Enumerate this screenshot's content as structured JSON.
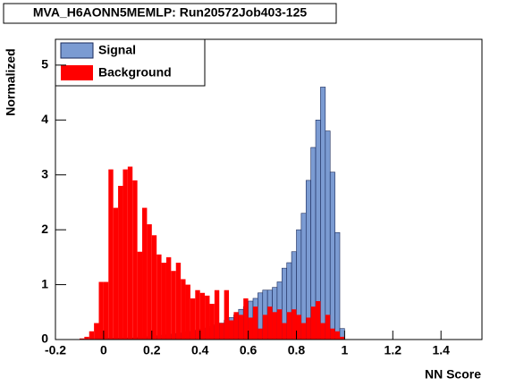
{
  "chart_data": {
    "type": "histogram",
    "title": "MVA_H6AONN5MEMLP: Run20572Job403-125",
    "x_label": "NN Score",
    "y_label": "Normalized",
    "bins": [
      -0.1,
      -0.08,
      -0.06,
      -0.04,
      -0.02,
      0,
      0.02,
      0.04,
      0.06,
      0.08,
      0.1,
      0.12,
      0.14,
      0.16,
      0.18,
      0.2,
      0.22,
      0.24,
      0.26,
      0.28,
      0.3,
      0.32,
      0.34,
      0.36,
      0.38,
      0.4,
      0.42,
      0.44,
      0.46,
      0.48,
      0.5,
      0.52,
      0.54,
      0.56,
      0.58,
      0.6,
      0.62,
      0.64,
      0.66,
      0.68,
      0.7,
      0.72,
      0.74,
      0.76,
      0.78,
      0.8,
      0.82,
      0.84,
      0.86,
      0.88,
      0.9,
      0.92,
      0.94,
      0.96,
      0.98,
      1
    ],
    "series": [
      {
        "name": "Signal",
        "color": "#7b9bd2",
        "values": [
          0,
          0,
          0,
          0,
          0.01,
          0.01,
          0.02,
          0.02,
          0.02,
          0.03,
          0.03,
          0.03,
          0.04,
          0.05,
          0.05,
          0.06,
          0.07,
          0.08,
          0.09,
          0.1,
          0.11,
          0.12,
          0.14,
          0.15,
          0.17,
          0.19,
          0.21,
          0.24,
          0.27,
          0.3,
          0.35,
          0.4,
          0.45,
          0.55,
          0.6,
          0.7,
          0.75,
          0.85,
          0.9,
          0.9,
          0.95,
          1.05,
          1.3,
          1.4,
          1.6,
          2.0,
          2.3,
          2.9,
          3.5,
          4.0,
          4.6,
          3.8,
          3.05,
          1.95,
          0.2
        ]
      },
      {
        "name": "Background",
        "color": "#ff0000",
        "values": [
          0.02,
          0.05,
          0.15,
          0.3,
          1.05,
          1.05,
          3.1,
          2.4,
          2.8,
          3.1,
          3.15,
          2.9,
          1.6,
          2.4,
          2.1,
          1.9,
          1.55,
          1.4,
          1.5,
          1.25,
          1.4,
          1.1,
          1.0,
          0.75,
          0.9,
          0.85,
          0.8,
          0.65,
          0.9,
          0.3,
          0.9,
          0.35,
          0.5,
          0.45,
          0.75,
          0.4,
          0.6,
          0.2,
          0.45,
          0.6,
          0.5,
          0.55,
          0.3,
          0.5,
          0.55,
          0.45,
          0.3,
          0.4,
          0.6,
          0.7,
          0.3,
          0.45,
          0.2,
          0.15,
          0.05
        ]
      }
    ],
    "xlim": [
      -0.2,
      1.57
    ],
    "ylim": [
      0,
      5.47
    ],
    "xticks": [
      -0.2,
      0,
      0.2,
      0.4,
      0.6,
      0.8,
      1,
      1.2,
      1.4
    ],
    "yticks": [
      0,
      1,
      2,
      3,
      4,
      5
    ]
  }
}
